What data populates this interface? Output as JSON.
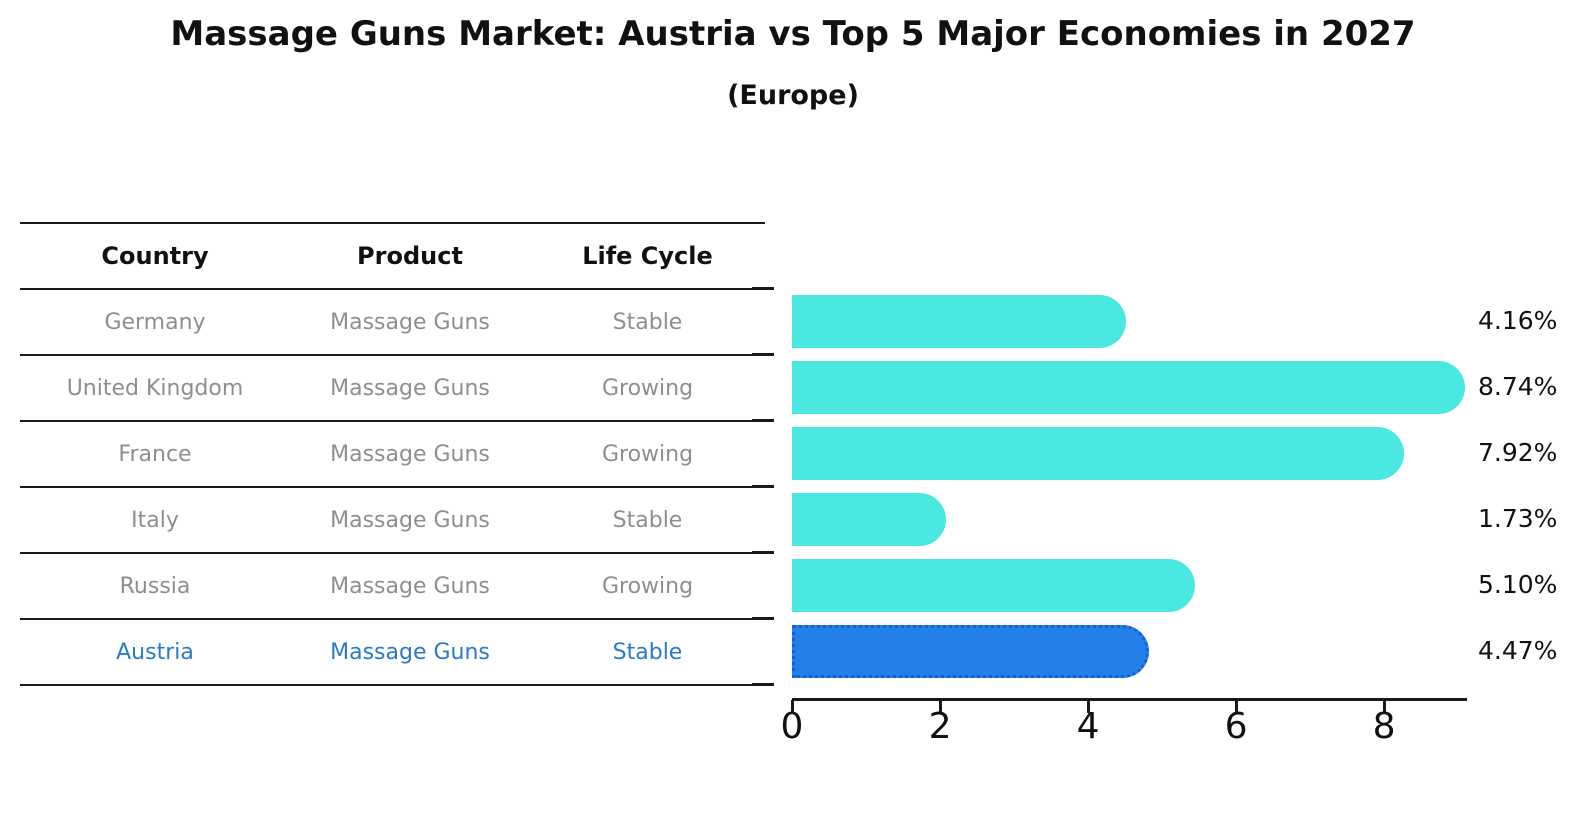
{
  "title": "Massage Guns Market: Austria vs Top 5 Major Economies in 2027",
  "subtitle": "(Europe)",
  "table": {
    "headers": [
      "Country",
      "Product",
      "Life Cycle"
    ],
    "rows": [
      {
        "country": "Germany",
        "product": "Massage Guns",
        "life_cycle": "Stable",
        "highlight": false
      },
      {
        "country": "United Kingdom",
        "product": "Massage Guns",
        "life_cycle": "Growing",
        "highlight": false
      },
      {
        "country": "France",
        "product": "Massage Guns",
        "life_cycle": "Growing",
        "highlight": false
      },
      {
        "country": "Italy",
        "product": "Massage Guns",
        "life_cycle": "Stable",
        "highlight": false
      },
      {
        "country": "Russia",
        "product": "Massage Guns",
        "life_cycle": "Growing",
        "highlight": false
      },
      {
        "country": "Austria",
        "product": "Massage Guns",
        "life_cycle": "Stable",
        "highlight": true
      }
    ]
  },
  "chart_data": {
    "type": "bar",
    "orientation": "horizontal",
    "title": "Massage Guns Market: Austria vs Top 5 Major Economies in 2027",
    "subtitle": "(Europe)",
    "categories": [
      "Germany",
      "United Kingdom",
      "France",
      "Italy",
      "Russia",
      "Austria"
    ],
    "values": [
      4.16,
      8.74,
      7.92,
      1.73,
      5.1,
      4.47
    ],
    "value_labels": [
      "4.16%",
      "8.74%",
      "7.92%",
      "1.73%",
      "5.10%",
      "4.47%"
    ],
    "x_ticks": [
      0,
      2,
      4,
      6,
      8
    ],
    "xlim": [
      0,
      9.12
    ],
    "grid": false,
    "legend": false,
    "highlight_index": 5
  },
  "colors": {
    "bar": "#4ae8e0",
    "highlight_bar": "#2380e8",
    "highlight_border": "#135fcc",
    "highlight_text": "#2979cc",
    "body_text": "#8e8e8e",
    "heading_text": "#111111",
    "line": "#1a1a1a"
  }
}
